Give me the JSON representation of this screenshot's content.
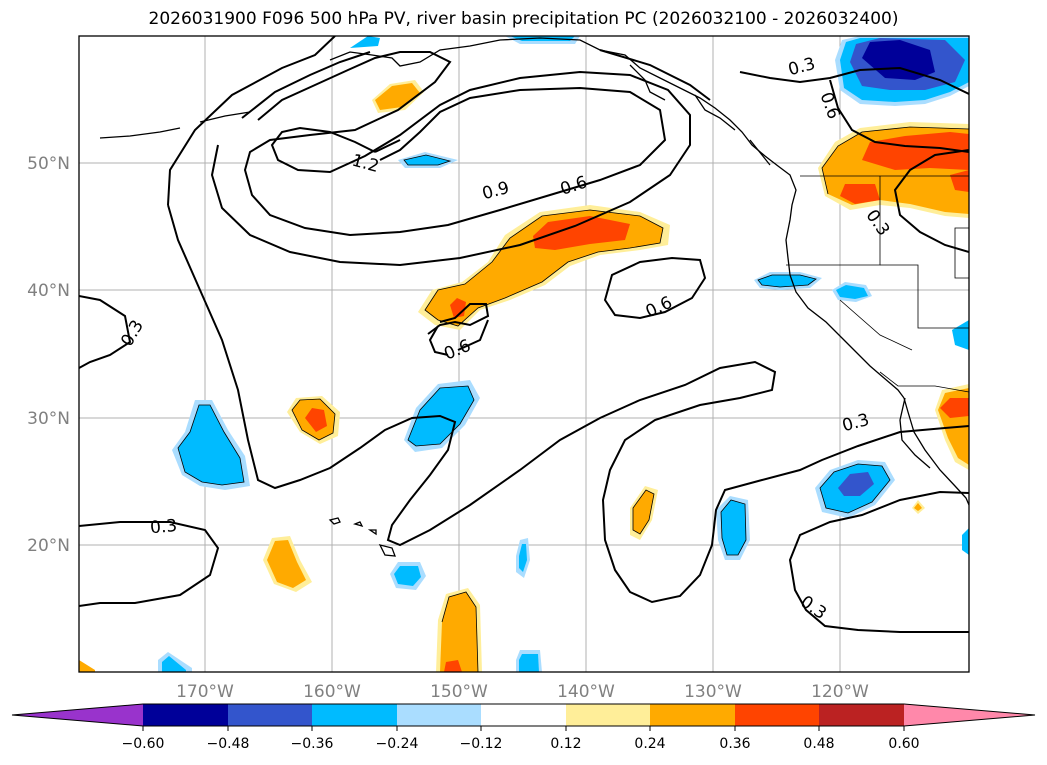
{
  "title": "2026031900 F096 500 hPa PV, river basin precipitation PC (2026032100 - 2026032400)",
  "lat_labels": [
    "50°N",
    "40°N",
    "30°N",
    "20°N"
  ],
  "lon_labels": [
    "170°W",
    "160°W",
    "150°W",
    "140°W",
    "130°W",
    "120°W"
  ],
  "contour_labels": [
    "1.2",
    "0.9",
    "0.6",
    "0.6",
    "0.6",
    "0.3",
    "0.3",
    "0.3",
    "0.3",
    "0.6",
    "0.3",
    "0.3"
  ],
  "colorbar": {
    "colors": [
      "#9933cc",
      "#000099",
      "#3355cc",
      "#00bbff",
      "#aaddff",
      "#ffffff",
      "#ffee99",
      "#ffaa00",
      "#ff4400",
      "#bb2222",
      "#ff88aa"
    ],
    "tick_labels": [
      "−0.60",
      "−0.48",
      "−0.36",
      "−0.24",
      "−0.12",
      "0.12",
      "0.24",
      "0.36",
      "0.48",
      "0.60"
    ]
  }
}
